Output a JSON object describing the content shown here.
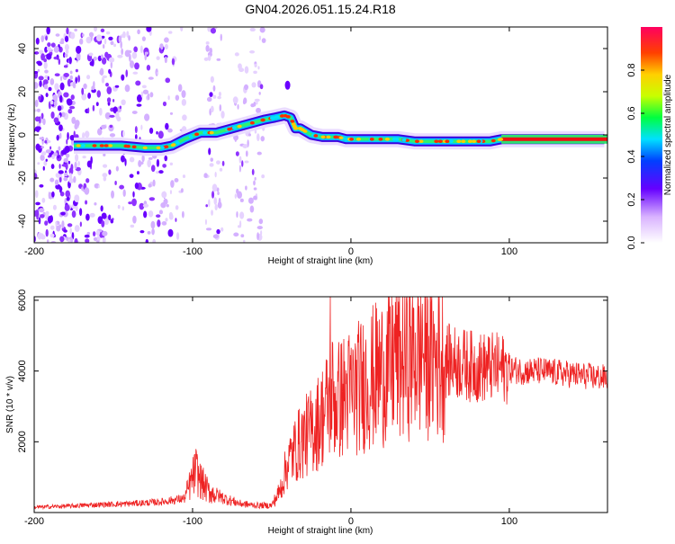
{
  "figure_title": "GN04.2026.051.15.24.R18",
  "chart_data": [
    {
      "type": "heatmap",
      "title": "GN04.2026.051.15.24.R18",
      "xlabel": "Height of straight line (km)",
      "ylabel": "Frequency (Hz)",
      "xlim": [
        -200,
        162
      ],
      "ylim": [
        -50,
        50
      ],
      "xticks": [
        -200,
        -100,
        0,
        100
      ],
      "yticks": [
        -40,
        -20,
        0,
        20,
        40
      ],
      "colorbar": {
        "label": "Normalized spectral amplitude",
        "range": [
          0.0,
          1.0
        ],
        "ticks": [
          0.0,
          0.2,
          0.4,
          0.6,
          0.8
        ]
      },
      "ridge": {
        "x": [
          -175,
          -160,
          -145,
          -130,
          -120,
          -113,
          -105,
          -95,
          -85,
          -75,
          -65,
          -55,
          -48,
          -42,
          -38,
          -35,
          -32,
          -25,
          -18,
          -12,
          -8,
          -3,
          0,
          10,
          20,
          30,
          40,
          50,
          60,
          70,
          80,
          88,
          95,
          110,
          130,
          160
        ],
        "y": [
          -5,
          -5,
          -5,
          -6,
          -6,
          -5,
          -2,
          1,
          1,
          3,
          5,
          7,
          8,
          9,
          8,
          3,
          3,
          0,
          -1,
          -1,
          -1,
          -2,
          -2,
          -2,
          -2,
          -2,
          -3,
          -3,
          -3,
          -3,
          -3,
          -3,
          -2,
          -2,
          -2,
          -2
        ]
      }
    },
    {
      "type": "line",
      "xlabel": "Height of straight line (km)",
      "ylabel": "SNR (10 * v/v)",
      "xlim": [
        -200,
        162
      ],
      "ylim": [
        0,
        6100
      ],
      "xticks": [
        -200,
        -100,
        0,
        100
      ],
      "yticks": [
        2000,
        4000,
        6000
      ],
      "color": "#ee2222",
      "series": [
        {
          "name": "SNR",
          "x": [
            -200,
            -180,
            -160,
            -140,
            -120,
            -105,
            -98,
            -95,
            -90,
            -85,
            -80,
            -70,
            -60,
            -50,
            -45,
            -40,
            -35,
            -30,
            -25,
            -20,
            -15,
            -12,
            -10,
            -5,
            0,
            10,
            20,
            30,
            40,
            50,
            60,
            70,
            80,
            90,
            100,
            110,
            120,
            130,
            140,
            150,
            162
          ],
          "y": [
            150,
            180,
            220,
            250,
            300,
            400,
            1200,
            900,
            600,
            500,
            400,
            250,
            200,
            200,
            600,
            1400,
            1800,
            2100,
            2300,
            2600,
            3000,
            3400,
            3100,
            3300,
            3400,
            3700,
            4000,
            4300,
            4500,
            4450,
            4300,
            4200,
            4100,
            4100,
            4050,
            4000,
            4000,
            3950,
            3900,
            3850,
            3800
          ]
        }
      ],
      "peaks": [
        {
          "x": -97,
          "y": 1650
        },
        {
          "x": -13,
          "y": 6100
        },
        {
          "x": 28,
          "y": 5950
        },
        {
          "x": 45,
          "y": 5900
        }
      ]
    }
  ]
}
